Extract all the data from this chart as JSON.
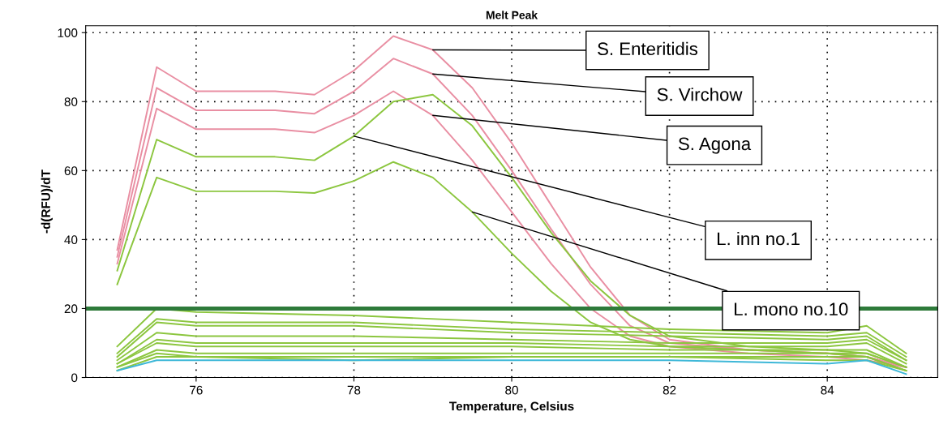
{
  "chart_data": {
    "type": "line",
    "title": "Melt Peak",
    "xlabel": "Temperature, Celsius",
    "ylabel": "-d(RFU)/dT",
    "xlim": [
      74.6,
      85.4
    ],
    "ylim": [
      0,
      102
    ],
    "xticks": [
      76,
      78,
      80,
      82,
      84
    ],
    "yticks": [
      0,
      20,
      40,
      60,
      80,
      100
    ],
    "grid": true,
    "legend": false,
    "marker": "none",
    "line_style": "solid",
    "series": [
      {
        "color": "#e98fa3",
        "x": [
          75,
          75.5,
          76,
          77,
          77.5,
          78,
          78.5,
          79,
          79.5,
          80,
          80.5,
          81,
          81.5,
          82,
          83,
          84,
          84.5,
          85
        ],
        "values": [
          37,
          90,
          83,
          83,
          82,
          89,
          99,
          95,
          84,
          68,
          50,
          32,
          18,
          11,
          8,
          7,
          6,
          3
        ]
      },
      {
        "color": "#e98fa3",
        "x": [
          75,
          75.5,
          76,
          77,
          77.5,
          78,
          78.5,
          79,
          79.5,
          80,
          80.5,
          81,
          81.5,
          82,
          83,
          84,
          84.5,
          85
        ],
        "values": [
          35,
          84,
          77.5,
          77.5,
          76.5,
          83,
          92.5,
          88,
          76,
          60,
          43,
          27,
          15,
          10,
          8,
          7,
          6,
          3
        ]
      },
      {
        "color": "#e98fa3",
        "x": [
          75,
          75.5,
          76,
          77,
          77.5,
          78,
          78.5,
          79,
          79.5,
          80,
          80.5,
          81,
          81.5,
          82,
          83,
          84,
          84.5,
          85
        ],
        "values": [
          33,
          78,
          72,
          72,
          71,
          76,
          83,
          76,
          63,
          48,
          33,
          20,
          12,
          9,
          7,
          6,
          5,
          3
        ]
      },
      {
        "color": "#8cc63f",
        "x": [
          75,
          75.5,
          76,
          77,
          77.5,
          78,
          78.5,
          79,
          79.5,
          80,
          80.5,
          81,
          81.5,
          82,
          83,
          84,
          84.5,
          85
        ],
        "values": [
          31,
          69,
          64,
          64,
          63,
          70,
          80,
          82,
          73,
          58,
          42,
          28,
          18,
          12,
          9,
          8,
          7,
          3
        ]
      },
      {
        "color": "#8cc63f",
        "x": [
          75,
          75.5,
          76,
          77,
          77.5,
          78,
          78.5,
          79,
          79.5,
          80,
          80.5,
          81,
          81.5,
          82,
          83,
          84,
          84.5,
          85
        ],
        "values": [
          27,
          58,
          54,
          54,
          53.5,
          57,
          62.5,
          58,
          48,
          36,
          25,
          16,
          11,
          9,
          8,
          7,
          6,
          2
        ]
      },
      {
        "color": "#8cc63f",
        "x": [
          75,
          75.5,
          76,
          78,
          80,
          82,
          84,
          84.5,
          85
        ],
        "values": [
          9,
          20,
          19,
          18,
          16,
          14,
          13,
          15,
          7
        ]
      },
      {
        "color": "#8cc63f",
        "x": [
          75,
          75.5,
          76,
          78,
          80,
          82,
          84,
          84.5,
          85
        ],
        "values": [
          7,
          17,
          16,
          16,
          14,
          13,
          12,
          13,
          6
        ]
      },
      {
        "color": "#8cc63f",
        "x": [
          75,
          75.5,
          76,
          78,
          80,
          82,
          84,
          84.5,
          85
        ],
        "values": [
          6,
          16,
          15,
          15,
          13,
          12,
          11,
          12,
          5
        ]
      },
      {
        "color": "#8cc63f",
        "x": [
          75,
          75.5,
          76,
          78,
          80,
          82,
          84,
          84.5,
          85
        ],
        "values": [
          5,
          13,
          12,
          12,
          11,
          10,
          10,
          11,
          5
        ]
      },
      {
        "color": "#8cc63f",
        "x": [
          75,
          75.5,
          76,
          78,
          80,
          82,
          84,
          84.5,
          85
        ],
        "values": [
          4,
          11,
          10,
          10,
          10,
          9,
          9,
          10,
          4
        ]
      },
      {
        "color": "#8cc63f",
        "x": [
          75,
          75.5,
          76,
          78,
          80,
          82,
          84,
          84.5,
          85
        ],
        "values": [
          4,
          10,
          9,
          9,
          9,
          8,
          8,
          8,
          3
        ]
      },
      {
        "color": "#8cc63f",
        "x": [
          75,
          75.5,
          76,
          78,
          80,
          82,
          84,
          84.5,
          85
        ],
        "values": [
          3,
          8,
          7,
          7,
          7,
          7,
          7,
          7,
          3
        ]
      },
      {
        "color": "#8cc63f",
        "x": [
          75,
          75.5,
          76,
          78,
          80,
          82,
          84,
          84.5,
          85
        ],
        "values": [
          3,
          7,
          6,
          6,
          6,
          6,
          6,
          6,
          2
        ]
      },
      {
        "color": "#8cc63f",
        "x": [
          75,
          75.5,
          76,
          78,
          80,
          82,
          84,
          84.5,
          85
        ],
        "values": [
          2,
          6,
          6,
          5,
          6,
          6,
          5,
          5,
          2
        ]
      },
      {
        "color": "#3fb8d8",
        "x": [
          75,
          75.5,
          76,
          78,
          80,
          82,
          84,
          84.5,
          85
        ],
        "values": [
          2,
          5,
          5,
          5,
          5,
          5,
          4,
          5,
          1
        ]
      }
    ],
    "ref_lines": [
      {
        "axis": "y",
        "value": 20,
        "color": "#2e7a3a"
      }
    ],
    "annotations": [
      {
        "text": "S. Enteritidis",
        "x": 79,
        "y": 95
      },
      {
        "text": "S. Virchow",
        "x": 79,
        "y": 88
      },
      {
        "text": "S. Agona",
        "x": 79,
        "y": 76
      },
      {
        "text": "L. inn no.1",
        "x": 78,
        "y": 70
      },
      {
        "text": "L. mono no.10",
        "x": 79.5,
        "y": 48
      }
    ]
  }
}
